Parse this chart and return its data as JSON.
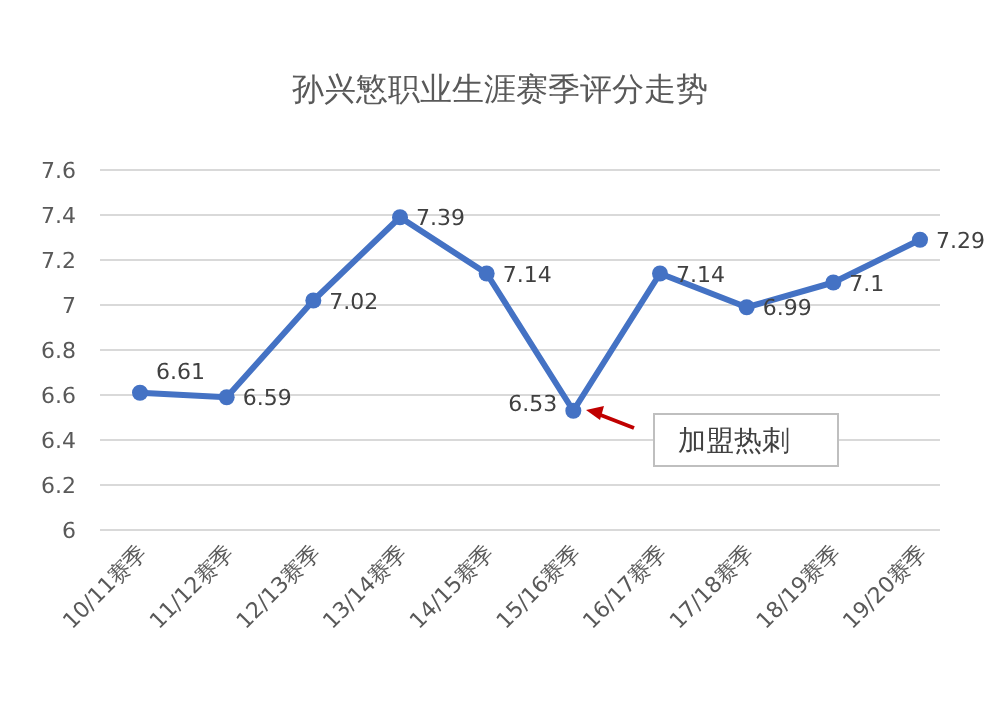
{
  "chart_data": {
    "type": "line",
    "title": "孙兴慜职业生涯赛季评分走势",
    "categories": [
      "10/11赛季",
      "11/12赛季",
      "12/13赛季",
      "13/14赛季",
      "14/15赛季",
      "15/16赛季",
      "16/17赛季",
      "17/18赛季",
      "18/19赛季",
      "19/20赛季"
    ],
    "series": [
      {
        "color": "#4472c4",
        "values": [
          6.61,
          6.59,
          7.02,
          7.39,
          7.14,
          6.53,
          7.14,
          6.99,
          7.1,
          7.29
        ]
      }
    ],
    "ylim": [
      6,
      7.6
    ],
    "yticks": [
      6,
      6.2,
      6.4,
      6.6,
      6.8,
      7,
      7.2,
      7.4,
      7.6
    ],
    "grid": "y",
    "marker": "circle",
    "data_labels": true,
    "annotations": [
      "加盟热刺"
    ]
  }
}
